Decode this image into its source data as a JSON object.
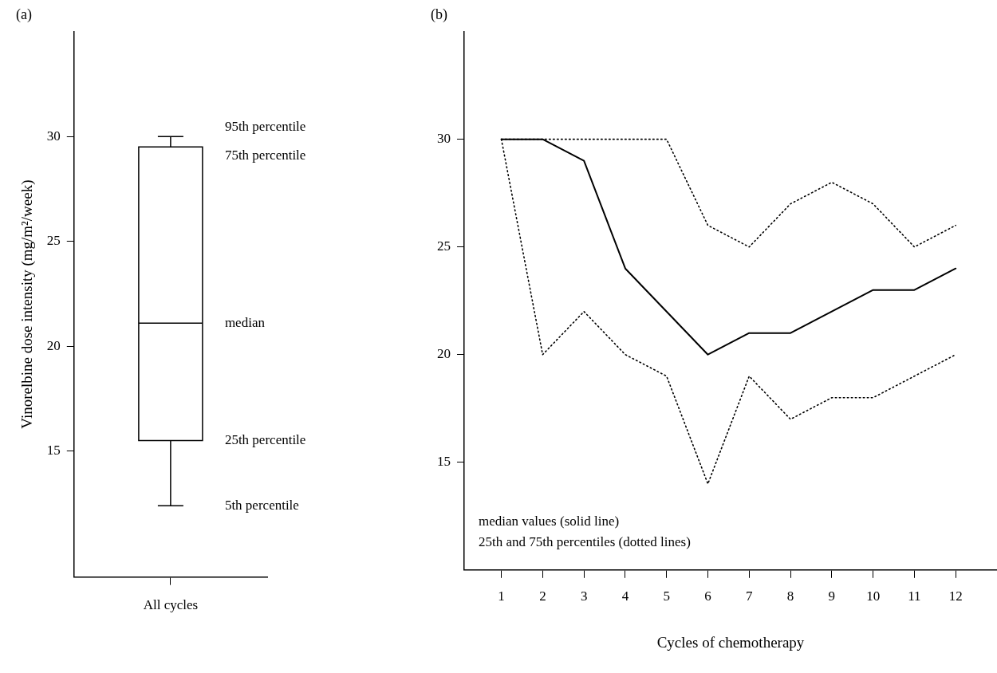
{
  "chart_data": [
    {
      "type": "box",
      "title": "(a)",
      "ylabel": "Vinorelbine dose intensity (mg/m²/week)",
      "categories": [
        "All cycles"
      ],
      "boxes": [
        {
          "low": 12.4,
          "q1": 15.5,
          "median": 21.1,
          "q3": 29.5,
          "high": 30
        }
      ],
      "color": "#000000",
      "ylim": [
        9,
        35
      ],
      "yticks": [
        15,
        20,
        25,
        30
      ],
      "grid": false,
      "annotations": [
        "95th percentile",
        "75th percentile",
        "median",
        "25th percentile",
        "5th percentile"
      ]
    },
    {
      "type": "line",
      "title": "(b)",
      "xlabel": "Cycles of chemotherapy",
      "x": [
        1,
        2,
        3,
        4,
        5,
        6,
        7,
        8,
        9,
        10,
        11,
        12
      ],
      "series": [
        {
          "color": "#000000",
          "line_style": "solid",
          "values": [
            30,
            30,
            29,
            24,
            22,
            20,
            21,
            21,
            22,
            23,
            23,
            24
          ]
        },
        {
          "color": "#000000",
          "line_style": "dotted",
          "values": [
            30,
            30,
            30,
            30,
            30,
            26,
            25,
            27,
            28,
            27,
            25,
            26
          ]
        },
        {
          "color": "#000000",
          "line_style": "dotted",
          "values": [
            30,
            20,
            22,
            20,
            19,
            14,
            19,
            17,
            18,
            18,
            19,
            20
          ]
        }
      ],
      "marker": "none",
      "xlim": [
        0.1,
        13
      ],
      "xticks": [
        1,
        2,
        3,
        4,
        5,
        6,
        7,
        8,
        9,
        10,
        11,
        12
      ],
      "ylim": [
        10,
        35
      ],
      "yticks": [
        15,
        20,
        25,
        30
      ],
      "grid": false,
      "annotations": [
        "median values (solid line)",
        "25th and 75th percentiles (dotted lines)"
      ]
    }
  ]
}
